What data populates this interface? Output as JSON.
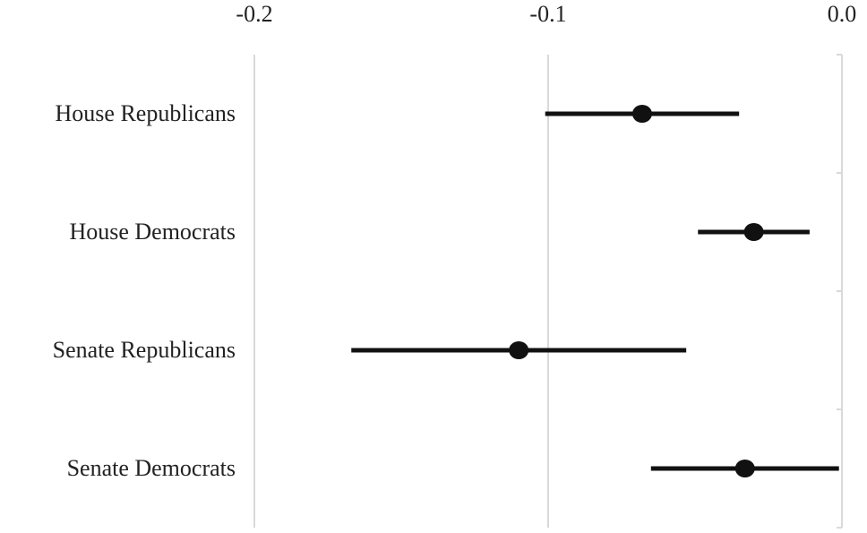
{
  "chart_data": {
    "type": "errorbar",
    "categories": [
      "House Republicans",
      "House Democrats",
      "Senate Republicans",
      "Senate Democrats"
    ],
    "values": [
      -0.068,
      -0.03,
      -0.11,
      -0.033
    ],
    "errors": [
      0.033,
      0.019,
      0.057,
      0.032
    ],
    "color": "#111111",
    "xlim": [
      -0.2,
      0
    ],
    "xticks": [
      -0.2,
      -0.1,
      {
        "value": 0,
        "label": "0.0"
      }
    ],
    "grid": true
  }
}
